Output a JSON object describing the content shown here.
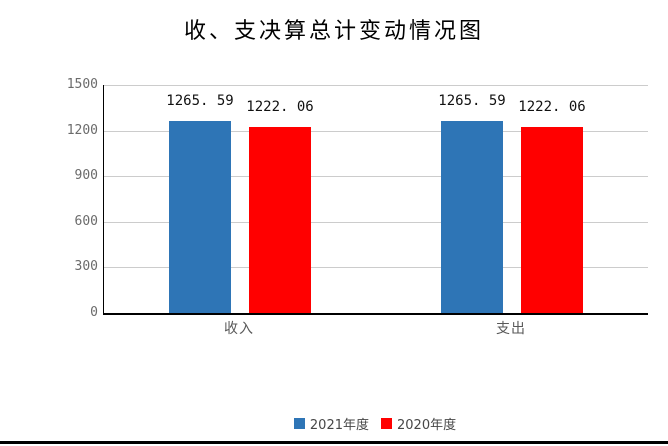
{
  "page": {
    "background": "#FFFFFF",
    "bottom_rule_color": "#000000"
  },
  "chart_data": {
    "type": "bar",
    "title": "收、支决算总计变动情况图",
    "categories": [
      "收入",
      "支出"
    ],
    "series": [
      {
        "name": "2021年度",
        "color": "#2E75B6",
        "values": [
          1265.59,
          1265.59
        ],
        "value_labels": [
          "1265. 59",
          "1265. 59"
        ]
      },
      {
        "name": "2020年度",
        "color": "#FF0000",
        "values": [
          1222.06,
          1222.06
        ],
        "value_labels": [
          "1222. 06",
          "1222. 06"
        ]
      }
    ],
    "xlabel": "",
    "ylabel": "",
    "ylim": [
      0,
      1500
    ],
    "ytick_interval": 300,
    "yticks": [
      "0",
      "300",
      "600",
      "900",
      "1200",
      "1500"
    ],
    "grid": "horizontal",
    "gridline_color": "#CCCCCC",
    "axis_color": "#000000",
    "tick_label_color": "#6B6B6B",
    "value_label_color": "#111111",
    "legend_position": "bottom-center"
  }
}
